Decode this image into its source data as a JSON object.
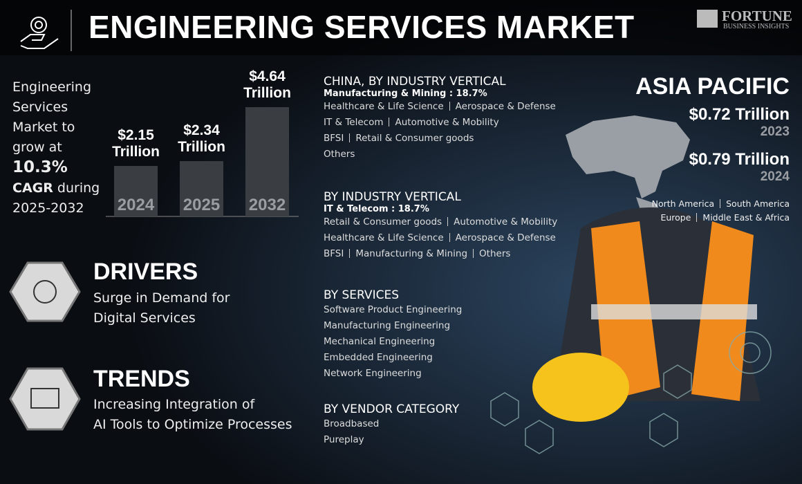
{
  "header": {
    "title": "ENGINEERING SERVICES MARKET",
    "brand": "FORTUNE",
    "brand_sub": "BUSINESS INSIGHTS"
  },
  "intro": {
    "text": "Engineering Services Market to grow at",
    "cagr": "10.3%",
    "cagr_label": "CAGR",
    "period": "during 2025-2032"
  },
  "market_size": {
    "bars": [
      {
        "year": "2024",
        "value": 2.15,
        "label": "$2.15",
        "unit": "Trillion"
      },
      {
        "year": "2025",
        "value": 2.34,
        "label": "$2.34",
        "unit": "Trillion"
      },
      {
        "year": "2032",
        "value": 4.64,
        "label": "$4.64",
        "unit": "Trillion"
      }
    ]
  },
  "drivers": {
    "title": "DRIVERS",
    "lines": [
      "Surge in Demand for",
      "Digital Services"
    ]
  },
  "trends": {
    "title": "TRENDS",
    "lines": [
      "Increasing Integration of",
      "AI Tools to Optimize Processes"
    ]
  },
  "china": {
    "title": "CHINA, BY INDUSTRY VERTICAL",
    "highlight": "Manufacturing & Mining : 18.7%",
    "rows": [
      [
        "Healthcare & Life Science",
        "Aerospace & Defense"
      ],
      [
        "IT & Telecom",
        "Automotive & Mobility"
      ],
      [
        "BFSI",
        "Retail & Consumer goods"
      ],
      [
        "Others"
      ]
    ]
  },
  "industry": {
    "title": "BY INDUSTRY VERTICAL",
    "highlight": "IT & Telecom : 18.7%",
    "rows": [
      [
        "Retail & Consumer goods",
        "Automotive & Mobility"
      ],
      [
        "Healthcare & Life Science",
        "Aerospace & Defense"
      ],
      [
        "BFSI",
        "Manufacturing & Mining",
        "Others"
      ]
    ]
  },
  "services": {
    "title": "BY SERVICES",
    "items": [
      "Software Product Engineering",
      "Manufacturing Engineering",
      "Mechanical Engineering",
      "Embedded Engineering",
      "Network Engineering"
    ]
  },
  "vendor": {
    "title": "BY VENDOR CATEGORY",
    "items": [
      "Broadbased",
      "Pureplay"
    ]
  },
  "region": {
    "title": "ASIA PACIFIC",
    "stats": [
      {
        "value": "$0.72 Trillion",
        "year": "2023"
      },
      {
        "value": "$0.79 Trillion",
        "year": "2024"
      }
    ],
    "others": [
      [
        "North America",
        "South America"
      ],
      [
        "Europe",
        "Middle East & Africa"
      ]
    ]
  }
}
